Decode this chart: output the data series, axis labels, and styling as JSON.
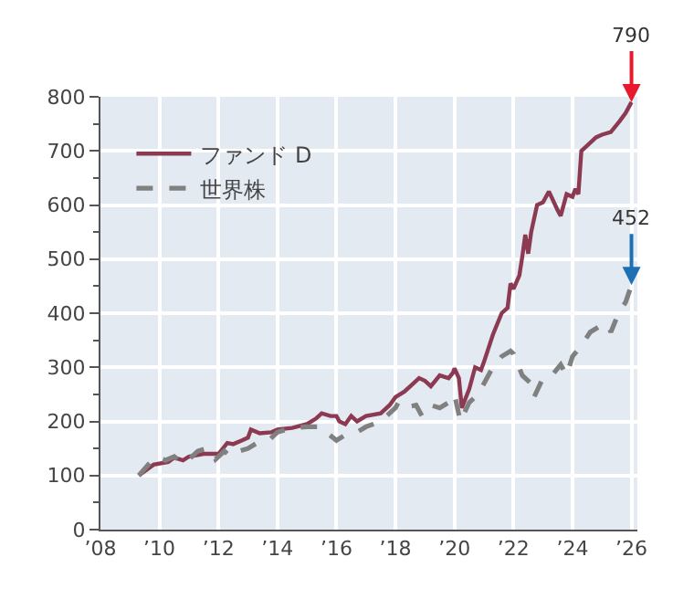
{
  "chart_data": {
    "type": "line",
    "series": [
      {
        "name": "ファンド D",
        "color": "#8b3a52",
        "line_style": "solid",
        "x": [
          2009.3,
          2009.8,
          2010.3,
          2010.5,
          2010.8,
          2011.0,
          2011.5,
          2012.0,
          2012.3,
          2012.5,
          2012.8,
          2013.0,
          2013.1,
          2013.4,
          2013.8,
          2014.0,
          2014.5,
          2015.0,
          2015.3,
          2015.5,
          2015.8,
          2016.0,
          2016.1,
          2016.3,
          2016.5,
          2016.7,
          2017.0,
          2017.5,
          2017.8,
          2018.0,
          2018.3,
          2018.6,
          2018.8,
          2019.0,
          2019.2,
          2019.5,
          2019.8,
          2019.95,
          2020.0,
          2020.15,
          2020.25,
          2020.5,
          2020.7,
          2020.9,
          2021.0,
          2021.3,
          2021.6,
          2021.8,
          2021.9,
          2022.0,
          2022.2,
          2022.3,
          2022.4,
          2022.5,
          2022.6,
          2022.8,
          2023.0,
          2023.2,
          2023.5,
          2023.6,
          2023.8,
          2024.0,
          2024.1,
          2024.2,
          2024.3,
          2024.5,
          2024.8,
          2025.0,
          2025.3,
          2025.6,
          2025.8,
          2026.0
        ],
        "values": [
          100,
          120,
          125,
          133,
          128,
          135,
          140,
          140,
          160,
          158,
          165,
          170,
          185,
          178,
          180,
          185,
          188,
          195,
          205,
          215,
          210,
          210,
          200,
          195,
          210,
          200,
          210,
          215,
          230,
          245,
          255,
          270,
          280,
          275,
          265,
          285,
          280,
          290,
          298,
          280,
          225,
          260,
          300,
          295,
          310,
          360,
          400,
          410,
          455,
          445,
          470,
          505,
          545,
          510,
          550,
          600,
          605,
          625,
          590,
          580,
          620,
          615,
          630,
          620,
          700,
          710,
          725,
          730,
          735,
          755,
          770,
          790
        ]
      },
      {
        "name": "世界株",
        "color": "#808080",
        "line_style": "dashed",
        "x": [
          2009.3,
          2009.7,
          2009.9,
          2010.2,
          2010.5,
          2010.8,
          2011.0,
          2011.3,
          2011.6,
          2011.8,
          2011.9,
          2012.2,
          2012.4,
          2012.7,
          2013.0,
          2013.3,
          2013.7,
          2014.0,
          2014.5,
          2015.0,
          2015.5,
          2015.7,
          2016.0,
          2016.3,
          2016.7,
          2017.0,
          2017.5,
          2018.0,
          2018.1,
          2018.3,
          2018.7,
          2018.9,
          2019.2,
          2019.5,
          2019.8,
          2020.0,
          2020.2,
          2020.5,
          2020.8,
          2021.0,
          2021.3,
          2021.6,
          2021.9,
          2022.0,
          2022.3,
          2022.6,
          2022.7,
          2023.0,
          2023.3,
          2023.6,
          2023.8,
          2024.0,
          2024.3,
          2024.6,
          2024.9,
          2025.2,
          2025.3,
          2025.6,
          2025.8,
          2026.0
        ],
        "values": [
          100,
          125,
          135,
          128,
          135,
          122,
          130,
          145,
          150,
          140,
          130,
          145,
          135,
          145,
          150,
          160,
          165,
          180,
          188,
          190,
          190,
          178,
          165,
          175,
          180,
          190,
          200,
          225,
          235,
          225,
          230,
          210,
          230,
          225,
          235,
          250,
          200,
          235,
          250,
          270,
          300,
          320,
          330,
          325,
          285,
          270,
          245,
          280,
          285,
          305,
          285,
          320,
          340,
          365,
          375,
          380,
          365,
          405,
          420,
          452
        ]
      }
    ],
    "annotations": [
      {
        "text": "790",
        "x": 2026.0,
        "y": 790
      },
      {
        "text": "452",
        "x": 2026.0,
        "y": 452
      }
    ],
    "xlim": [
      2008,
      2026.2
    ],
    "xticks": [
      {
        "value": 2008,
        "label": "’08"
      },
      {
        "value": 2010,
        "label": "’10"
      },
      {
        "value": 2012,
        "label": "’12"
      },
      {
        "value": 2014,
        "label": "’14"
      },
      {
        "value": 2016,
        "label": "’16"
      },
      {
        "value": 2018,
        "label": "’18"
      },
      {
        "value": 2020,
        "label": "’20"
      },
      {
        "value": 2022,
        "label": "’22"
      },
      {
        "value": 2024,
        "label": "’24"
      },
      {
        "value": 2026,
        "label": "’26"
      }
    ],
    "ylim": [
      0,
      800
    ],
    "yticks": [
      0,
      {
        "value": 50,
        "label": null
      },
      100,
      {
        "value": 150,
        "label": null
      },
      200,
      {
        "value": 250,
        "label": null
      },
      300,
      {
        "value": 350,
        "label": null
      },
      400,
      {
        "value": 450,
        "label": null
      },
      500,
      {
        "value": 550,
        "label": null
      },
      600,
      {
        "value": 650,
        "label": null
      },
      700,
      {
        "value": 750,
        "label": null
      },
      800
    ],
    "grid": true,
    "legend": "top left",
    "marker": "none"
  }
}
